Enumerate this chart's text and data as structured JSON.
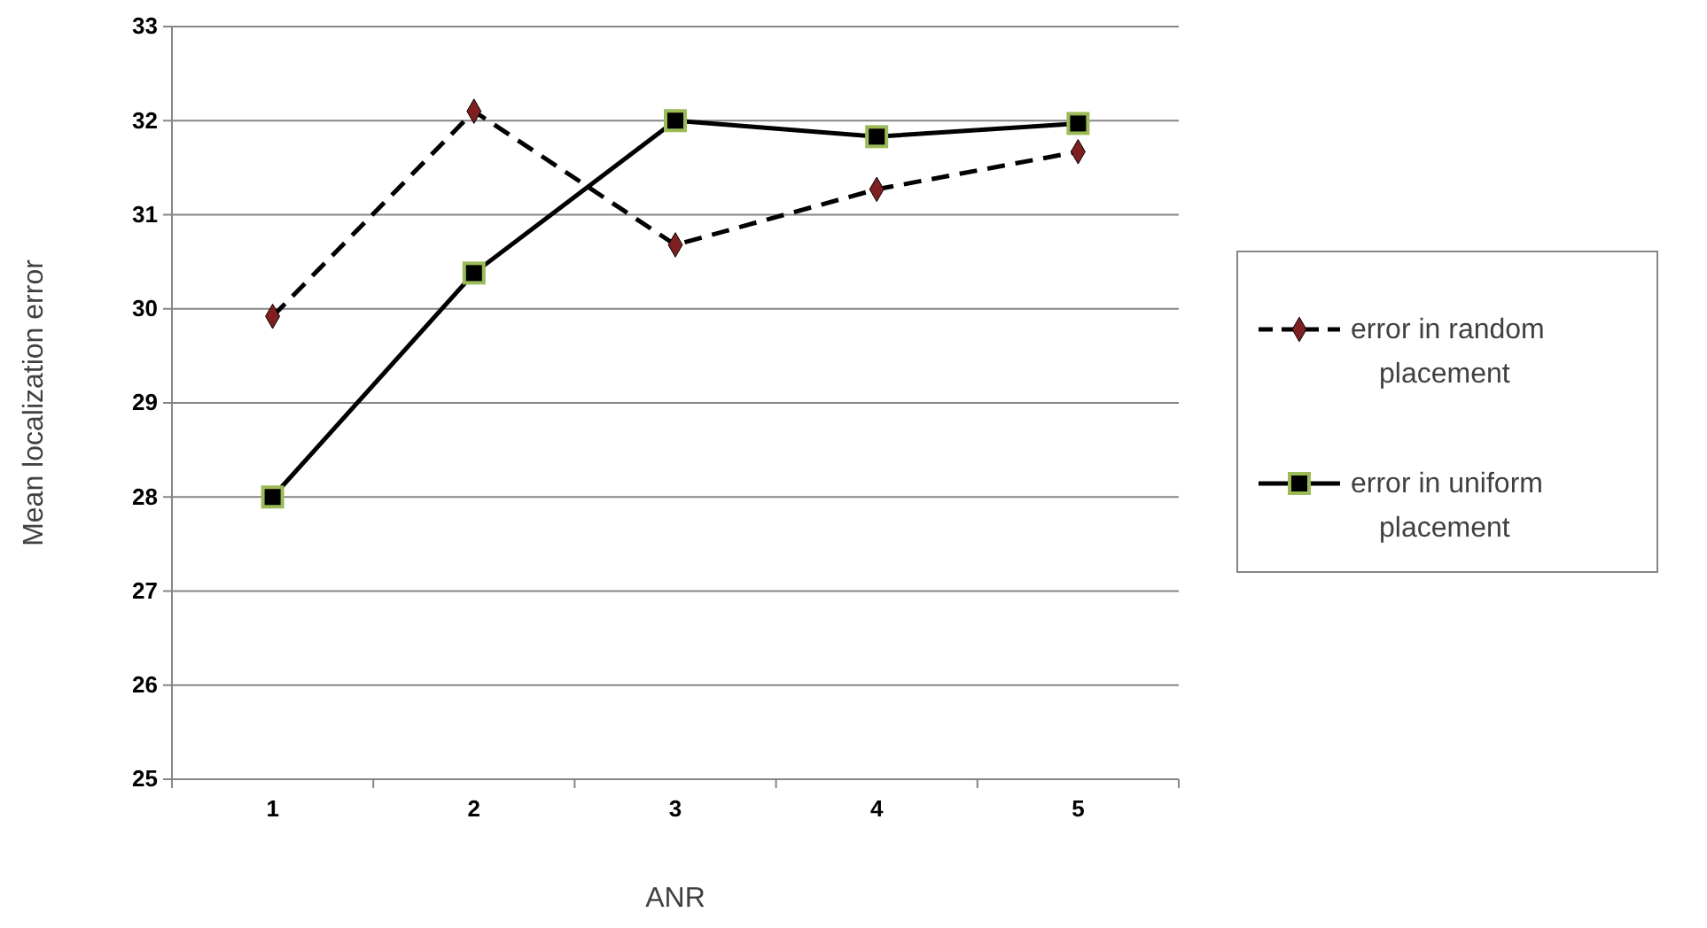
{
  "chart_data": {
    "type": "line",
    "xlabel": "ANR",
    "ylabel": "Mean localization error",
    "categories": [
      "1",
      "2",
      "3",
      "4",
      "5"
    ],
    "series": [
      {
        "name": "error in random placement",
        "color": "#000000",
        "marker": "diamond",
        "line_style": "dashed",
        "values": [
          29.92,
          32.1,
          30.68,
          31.27,
          31.67
        ]
      },
      {
        "name": "error in uniform placement",
        "color": "#000000",
        "marker": "square",
        "line_style": "solid",
        "values": [
          28.0,
          30.38,
          32.0,
          31.83,
          31.97
        ]
      }
    ],
    "ylim": [
      25,
      33
    ],
    "yticks": [
      25,
      26,
      27,
      28,
      29,
      30,
      31,
      32,
      33
    ],
    "grid": "y",
    "legend": "right"
  }
}
